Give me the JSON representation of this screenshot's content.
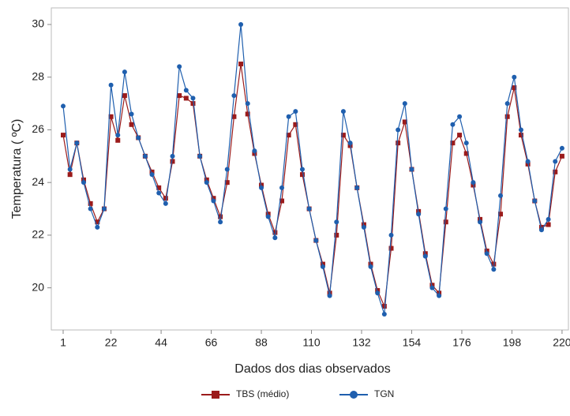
{
  "chart_data": {
    "type": "line",
    "x_label": "Dados dos dias observados",
    "y_label": "Temperatura ( ºC)",
    "x": [
      1,
      4,
      7,
      10,
      13,
      16,
      19,
      22,
      25,
      28,
      31,
      34,
      37,
      40,
      43,
      46,
      49,
      52,
      55,
      58,
      61,
      64,
      67,
      70,
      73,
      76,
      79,
      82,
      85,
      88,
      91,
      94,
      97,
      100,
      103,
      106,
      109,
      112,
      115,
      118,
      121,
      124,
      127,
      130,
      133,
      136,
      139,
      142,
      145,
      148,
      151,
      154,
      157,
      160,
      163,
      166,
      169,
      172,
      175,
      178,
      181,
      184,
      187,
      190,
      193,
      196,
      199,
      202,
      205,
      208,
      211,
      214,
      217,
      220
    ],
    "series": [
      {
        "name": "TBS (médio)",
        "color": "#9b1b1b",
        "marker": "square",
        "values": [
          25.8,
          24.3,
          25.5,
          24.1,
          23.2,
          22.5,
          23.0,
          26.5,
          25.6,
          27.3,
          26.2,
          25.7,
          25.0,
          24.4,
          23.8,
          23.4,
          24.8,
          27.3,
          27.2,
          27.0,
          25.0,
          24.1,
          23.4,
          22.7,
          24.0,
          26.5,
          28.5,
          26.6,
          25.1,
          23.9,
          22.8,
          22.1,
          23.3,
          25.8,
          26.2,
          24.3,
          23.0,
          21.8,
          20.9,
          19.8,
          22.0,
          25.8,
          25.4,
          23.8,
          22.4,
          20.9,
          19.9,
          19.3,
          21.5,
          25.5,
          26.3,
          24.5,
          22.9,
          21.3,
          20.1,
          19.8,
          22.5,
          25.5,
          25.8,
          25.1,
          23.9,
          22.6,
          21.4,
          20.9,
          22.8,
          26.5,
          27.6,
          25.8,
          24.7,
          23.3,
          22.3,
          22.4,
          24.4,
          25.0
        ]
      },
      {
        "name": "TGN",
        "color": "#1f5fae",
        "marker": "circle",
        "values": [
          26.9,
          24.5,
          25.5,
          24.0,
          23.0,
          22.3,
          23.0,
          27.7,
          25.8,
          28.2,
          26.6,
          25.7,
          25.0,
          24.3,
          23.6,
          23.2,
          25.0,
          28.4,
          27.5,
          27.2,
          25.0,
          24.0,
          23.3,
          22.5,
          24.5,
          27.3,
          30.0,
          27.0,
          25.2,
          23.8,
          22.7,
          21.9,
          23.8,
          26.5,
          26.7,
          24.5,
          23.0,
          21.8,
          20.8,
          19.7,
          22.5,
          26.7,
          25.5,
          23.8,
          22.3,
          20.8,
          19.8,
          19.0,
          22.0,
          26.0,
          27.0,
          24.5,
          22.8,
          21.2,
          20.0,
          19.7,
          23.0,
          26.2,
          26.5,
          25.5,
          24.0,
          22.5,
          21.3,
          20.7,
          23.5,
          27.0,
          28.0,
          26.0,
          24.8,
          23.3,
          22.2,
          22.6,
          24.8,
          25.3
        ]
      }
    ],
    "xlim": [
      -4.2,
      222.8
    ],
    "ylim": [
      18.4,
      30.63
    ],
    "xticks": [
      1,
      22,
      44,
      66,
      88,
      110,
      132,
      154,
      176,
      198,
      220
    ],
    "yticks": [
      20,
      22,
      24,
      26,
      28,
      30
    ],
    "grid": false,
    "legend": "bottom"
  }
}
